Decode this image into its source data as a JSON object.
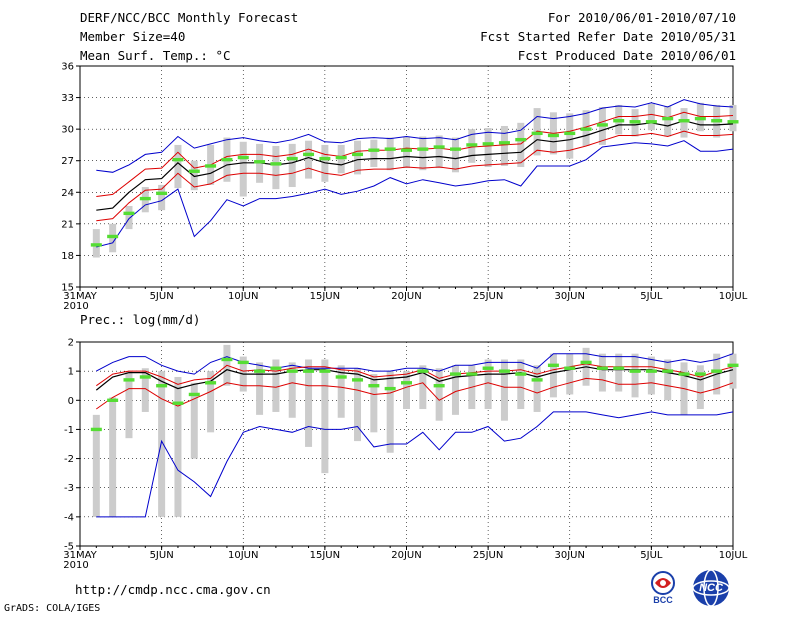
{
  "header": {
    "left_lines": [
      "DERF/NCC/BCC Monthly Forecast",
      "Member Size=40",
      "Mean Surf. Temp.: °C"
    ],
    "right_lines": [
      "For 2010/06/01-2010/07/10",
      "Fcst Started Refer Date 2010/05/31",
      "Fcst Produced Date 2010/06/01"
    ]
  },
  "footer": {
    "url": "http://cmdp.ncc.cma.gov.cn",
    "grads": "GrADS: COLA/IGES",
    "logo_left_text": "BCC",
    "logo_right_text": "NCC"
  },
  "colors": {
    "ensemble_bar": "#cccccc",
    "median": "#55dd33",
    "mean": "#000000",
    "spread": "#dd0000",
    "envelope": "#0000cc"
  },
  "chart_data": [
    {
      "type": "box",
      "title": "Mean Surf. Temp.: °C",
      "ylim": [
        15,
        36
      ],
      "yticks": [
        15,
        18,
        21,
        24,
        27,
        30,
        33,
        36
      ],
      "xticks": [
        {
          "day": 0,
          "label": "31MAY"
        },
        {
          "day": 5,
          "label": "5JUN"
        },
        {
          "day": 10,
          "label": "10JUN"
        },
        {
          "day": 15,
          "label": "15JUN"
        },
        {
          "day": 20,
          "label": "20JUN"
        },
        {
          "day": 25,
          "label": "25JUN"
        },
        {
          "day": 30,
          "label": "30JUN"
        },
        {
          "day": 35,
          "label": "5JUL"
        },
        {
          "day": 40,
          "label": "10JUL"
        }
      ],
      "year_label": "2010",
      "grid": true,
      "days": [
        1,
        2,
        3,
        4,
        5,
        6,
        7,
        8,
        9,
        10,
        11,
        12,
        13,
        14,
        15,
        16,
        17,
        18,
        19,
        20,
        21,
        22,
        23,
        24,
        25,
        26,
        27,
        28,
        29,
        30,
        31,
        32,
        33,
        34,
        35,
        36,
        37,
        38,
        39,
        40
      ],
      "box_low": [
        17.8,
        18.3,
        20.5,
        22.1,
        22.3,
        24.4,
        24.2,
        24.7,
        25,
        23.6,
        24.9,
        24.3,
        24.5,
        25.3,
        25,
        25.8,
        25.7,
        26.4,
        26.1,
        26.3,
        26.1,
        26.3,
        25.9,
        26.8,
        26.4,
        26.5,
        26.4,
        27.5,
        27.6,
        27.2,
        28.4,
        28.5,
        29.5,
        29.3,
        29.9,
        29.3,
        29.2,
        29.8,
        29.2,
        29.8
      ],
      "box_high": [
        20.5,
        21,
        22.7,
        24.5,
        24.7,
        28.5,
        27,
        28.5,
        29.2,
        28.8,
        28.6,
        28.4,
        28.6,
        28.9,
        28.5,
        28.5,
        28.9,
        29,
        29.2,
        29.3,
        29.3,
        29.4,
        29.2,
        30,
        30.1,
        30.3,
        30.6,
        32,
        31.6,
        31.5,
        31.8,
        32.1,
        32.3,
        31.9,
        32.4,
        32.2,
        32,
        32.5,
        32.3,
        32.3
      ],
      "median": [
        19,
        19.8,
        22,
        23.4,
        23.9,
        27.1,
        26,
        26.5,
        27.1,
        27.3,
        26.9,
        26.7,
        27.2,
        27.6,
        27.2,
        27.3,
        27.6,
        28,
        28.1,
        28,
        28.1,
        28.3,
        28.1,
        28.5,
        28.6,
        28.7,
        29,
        29.6,
        29.4,
        29.6,
        30,
        30.4,
        30.8,
        30.7,
        30.7,
        31,
        30.8,
        31,
        30.8,
        30.7
      ],
      "mean": [
        22.3,
        22.5,
        24,
        25.2,
        25.3,
        26.8,
        25.5,
        25.8,
        26.6,
        26.8,
        26.8,
        26.6,
        26.8,
        27.3,
        26.8,
        26.6,
        27.1,
        27.2,
        27.2,
        27.4,
        27.3,
        27.4,
        27.2,
        27.5,
        27.6,
        27.7,
        27.8,
        29,
        28.8,
        29,
        29.4,
        29.9,
        30.4,
        30.4,
        30.6,
        30.3,
        30.8,
        30.4,
        30.4,
        30.5
      ],
      "upper_sd": [
        23.6,
        23.8,
        25,
        26.2,
        26.3,
        27.8,
        26.3,
        26.6,
        27.4,
        27.6,
        27.6,
        27.4,
        27.6,
        28.1,
        27.6,
        27.4,
        27.9,
        28,
        28,
        28.2,
        28.1,
        28.2,
        28,
        28.3,
        28.4,
        28.5,
        28.6,
        29.8,
        29.6,
        29.8,
        30.2,
        30.7,
        31.2,
        31.2,
        31.4,
        31.1,
        31.6,
        31.2,
        31.2,
        31.3
      ],
      "lower_sd": [
        21.3,
        21.5,
        23,
        24.2,
        24.3,
        25.8,
        24.5,
        24.8,
        25.6,
        25.8,
        25.8,
        25.6,
        25.8,
        26.3,
        25.8,
        25.6,
        26.1,
        26.2,
        26.2,
        26.4,
        26.3,
        26.4,
        26.2,
        26.5,
        26.6,
        26.7,
        26.8,
        28,
        27.8,
        28,
        28.4,
        28.9,
        29.4,
        29.4,
        29.6,
        29.3,
        29.8,
        29.4,
        29.4,
        29.5
      ],
      "max": [
        26.1,
        25.9,
        26.6,
        27.6,
        27.8,
        29.3,
        28.2,
        28.6,
        29,
        29.2,
        28.9,
        28.7,
        29,
        29.5,
        28.8,
        28.7,
        29.1,
        29.2,
        29.1,
        29.3,
        29.1,
        29.2,
        29,
        29.5,
        29.7,
        29.6,
        29.9,
        31.2,
        31,
        31.2,
        31.5,
        32,
        32.2,
        32.1,
        32.5,
        32.1,
        32.8,
        32.4,
        32.2,
        32.1
      ],
      "min": [
        18.8,
        19.2,
        21.5,
        22.8,
        23.2,
        24.3,
        19.8,
        21.3,
        23.3,
        22.7,
        23.4,
        23.4,
        23.6,
        23.9,
        24.3,
        23.8,
        24.1,
        24.6,
        25.4,
        24.8,
        25.2,
        24.9,
        24.6,
        24.8,
        25.1,
        25.2,
        24.6,
        26.5,
        26.5,
        26.5,
        27.1,
        28.3,
        28.5,
        28.7,
        28.6,
        28.4,
        28.9,
        27.9,
        27.9,
        28.1
      ]
    },
    {
      "type": "box",
      "title": "Prec.: log(mm/d)",
      "ylim": [
        -5,
        2
      ],
      "yticks": [
        -5,
        -4,
        -3,
        -2,
        -1,
        0,
        1,
        2
      ],
      "xticks": [
        {
          "day": 0,
          "label": "31MAY"
        },
        {
          "day": 5,
          "label": "5JUN"
        },
        {
          "day": 10,
          "label": "10JUN"
        },
        {
          "day": 15,
          "label": "15JUN"
        },
        {
          "day": 20,
          "label": "20JUN"
        },
        {
          "day": 25,
          "label": "25JUN"
        },
        {
          "day": 30,
          "label": "30JUN"
        },
        {
          "day": 35,
          "label": "5JUL"
        },
        {
          "day": 40,
          "label": "10JUL"
        }
      ],
      "year_label": "2010",
      "grid": true,
      "days": [
        1,
        2,
        3,
        4,
        5,
        6,
        7,
        8,
        9,
        10,
        11,
        12,
        13,
        14,
        15,
        16,
        17,
        18,
        19,
        20,
        21,
        22,
        23,
        24,
        25,
        26,
        27,
        28,
        29,
        30,
        31,
        32,
        33,
        34,
        35,
        36,
        37,
        38,
        39,
        40
      ],
      "box_low": [
        -4,
        -4,
        -1.3,
        -0.4,
        -4,
        -4,
        -2,
        -1.1,
        0.5,
        0.3,
        -0.5,
        -0.4,
        -0.6,
        -1.6,
        -2.5,
        -0.6,
        -1.4,
        -1.1,
        -1.8,
        -0.3,
        -0.3,
        -0.7,
        -0.5,
        -0.3,
        -0.3,
        -0.7,
        -0.3,
        -0.4,
        0.1,
        0.2,
        0.5,
        0.3,
        0.3,
        0.1,
        0.2,
        0,
        -0.5,
        -0.3,
        0.2,
        0.4
      ],
      "box_high": [
        -0.5,
        0.1,
        1,
        1.1,
        1,
        0.8,
        0.6,
        1,
        1.9,
        1.5,
        1.3,
        1.4,
        1.3,
        1.4,
        1.4,
        1.2,
        1.1,
        0.9,
        1,
        1,
        1.2,
        1.1,
        1.2,
        1.2,
        1.4,
        1.4,
        1.4,
        1.2,
        1.6,
        1.6,
        1.8,
        1.6,
        1.6,
        1.6,
        1.5,
        1.4,
        1.3,
        1.2,
        1.6,
        1.6
      ],
      "median": [
        -1,
        0,
        0.7,
        0.8,
        0.5,
        -0.1,
        0.2,
        0.6,
        1.4,
        1.3,
        1,
        1.1,
        1,
        1,
        1,
        0.8,
        0.7,
        0.5,
        0.4,
        0.6,
        1,
        0.5,
        0.9,
        0.9,
        1.1,
        1,
        0.9,
        0.7,
        1.2,
        1.1,
        1.3,
        1.1,
        1.1,
        1,
        1,
        1,
        0.9,
        0.9,
        1,
        1.2
      ],
      "mean": [
        0.35,
        0.8,
        0.95,
        0.95,
        0.65,
        0.4,
        0.55,
        0.65,
        1.05,
        0.9,
        0.9,
        0.9,
        1,
        1.05,
        1.05,
        0.95,
        0.9,
        0.7,
        0.75,
        0.8,
        0.95,
        0.65,
        0.8,
        0.85,
        0.9,
        0.9,
        0.95,
        0.8,
        0.95,
        1.05,
        1.15,
        1.05,
        1.05,
        1.05,
        1.05,
        0.95,
        0.85,
        0.7,
        0.9,
        1.05
      ],
      "upper_sd": [
        0.5,
        0.9,
        1,
        1,
        0.8,
        0.55,
        0.7,
        0.75,
        1.2,
        1,
        1.05,
        1,
        1.1,
        1.15,
        1.15,
        1.05,
        1,
        0.8,
        0.85,
        0.9,
        1.05,
        0.75,
        0.9,
        0.95,
        1,
        1,
        1.05,
        0.9,
        1.05,
        1.15,
        1.25,
        1.15,
        1.15,
        1.15,
        1.15,
        1.05,
        0.95,
        0.8,
        1,
        1.15
      ],
      "lower_sd": [
        -0.3,
        0.1,
        0.4,
        0.4,
        0.05,
        -0.2,
        0.05,
        0.3,
        0.6,
        0.5,
        0.5,
        0.45,
        0.6,
        0.5,
        0.5,
        0.45,
        0.35,
        0.2,
        0.25,
        0.45,
        0.6,
        0,
        0.3,
        0.45,
        0.6,
        0.45,
        0.45,
        0.25,
        0.45,
        0.6,
        0.75,
        0.7,
        0.55,
        0.55,
        0.6,
        0.5,
        0.4,
        0.25,
        0.4,
        0.6
      ],
      "max": [
        1,
        1.3,
        1.5,
        1.5,
        1.2,
        1,
        0.9,
        1.3,
        1.5,
        1.3,
        1.2,
        1.1,
        1.2,
        1.1,
        1.1,
        1.1,
        1.1,
        1,
        1,
        1.1,
        1.1,
        1,
        1.2,
        1.2,
        1.3,
        1.3,
        1.3,
        1.1,
        1.6,
        1.6,
        1.6,
        1.5,
        1.5,
        1.5,
        1.4,
        1.3,
        1.4,
        1.3,
        1.4,
        1.6
      ],
      "min": [
        -4,
        -4,
        -4,
        -4,
        -1.4,
        -2.4,
        -2.8,
        -3.3,
        -2.1,
        -1.1,
        -0.9,
        -1,
        -1.1,
        -0.9,
        -1,
        -1,
        -0.9,
        -1.6,
        -1.5,
        -1.5,
        -1.1,
        -1.7,
        -1.1,
        -1.1,
        -0.9,
        -1.4,
        -1.3,
        -0.9,
        -0.4,
        -0.4,
        -0.4,
        -0.5,
        -0.6,
        -0.5,
        -0.4,
        -0.5,
        -0.5,
        -0.5,
        -0.5,
        -0.4
      ]
    }
  ]
}
